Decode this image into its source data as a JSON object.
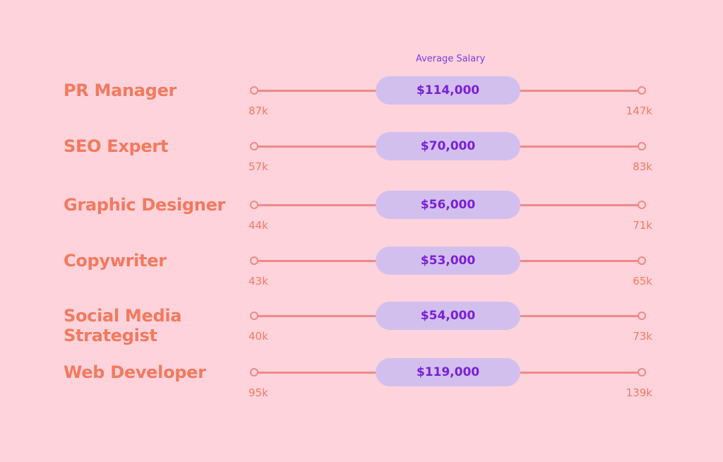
{
  "chart_data": {
    "type": "range",
    "header": "Average Salary",
    "rows": [
      {
        "title": "PR Manager",
        "average": "$114,000",
        "min": "87k",
        "max": "147k"
      },
      {
        "title": "SEO Expert",
        "average": "$70,000",
        "min": "57k",
        "max": "83k"
      },
      {
        "title": "Graphic Designer",
        "average": "$56,000",
        "min": "44k",
        "max": "71k"
      },
      {
        "title": "Copywriter",
        "average": "$53,000",
        "min": "43k",
        "max": "65k"
      },
      {
        "title": "Social Media Strategist",
        "average": "$54,000",
        "min": "40k",
        "max": "73k"
      },
      {
        "title": "Web Developer",
        "average": "$119,000",
        "min": "95k",
        "max": "139k"
      }
    ]
  },
  "colors": {
    "background": "#ffd3dc",
    "title": "#f27a5e",
    "line": "#f08a86",
    "pill": "#d2bfee",
    "average_text": "#7a1fd6",
    "header_text": "#7a3fe0"
  }
}
